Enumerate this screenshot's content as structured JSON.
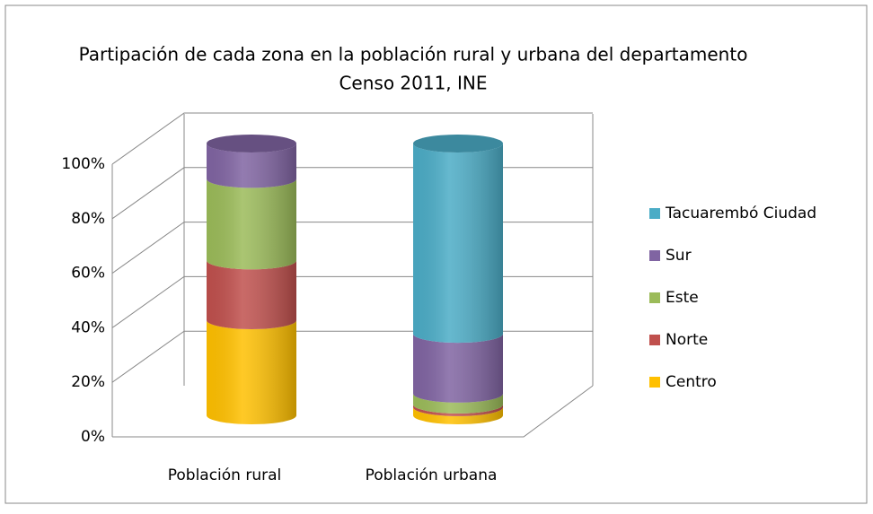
{
  "chart_data": {
    "type": "bar3d_stacked_cylinder",
    "title": "Partipación de cada zona en la población  rural y urbana del departamento",
    "subtitle": "Censo 2011, INE",
    "categories": [
      "Población rural",
      "Población urbana"
    ],
    "series": [
      {
        "name": "Centro",
        "color": "#FFC000",
        "values": [
          35,
          3
        ]
      },
      {
        "name": "Norte",
        "color": "#C0504D",
        "values": [
          22,
          1
        ]
      },
      {
        "name": "Este",
        "color": "#9BBB59",
        "values": [
          30,
          4
        ]
      },
      {
        "name": "Sur",
        "color": "#8064A2",
        "values": [
          13,
          22
        ]
      },
      {
        "name": "Tacuarembó Ciudad",
        "color": "#4BACC6",
        "values": [
          0,
          70
        ]
      }
    ],
    "ylim": [
      0,
      100
    ],
    "yticks": [
      {
        "value": 0,
        "label": "0%"
      },
      {
        "value": 20,
        "label": "20%"
      },
      {
        "value": 40,
        "label": "40%"
      },
      {
        "value": 60,
        "label": "60%"
      },
      {
        "value": 80,
        "label": "80%"
      },
      {
        "value": 100,
        "label": "100%"
      }
    ],
    "grid": true,
    "legend": "right"
  }
}
